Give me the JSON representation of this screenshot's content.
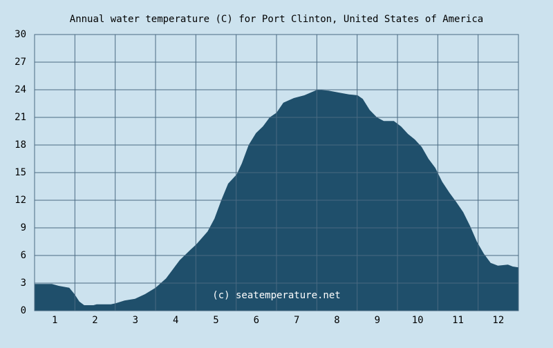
{
  "chart_data": {
    "type": "area",
    "title": "Annual water temperature (C) for Port Clinton, United States of America",
    "annotation": "(c) seatemperature.net",
    "color": "#1f4f6b",
    "background": "#cce2ee",
    "grid": true,
    "xlim": [
      0,
      12
    ],
    "xticks": [
      {
        "value": 0.5,
        "label": "1"
      },
      {
        "value": 1.5,
        "label": "2"
      },
      {
        "value": 2.5,
        "label": "3"
      },
      {
        "value": 3.5,
        "label": "4"
      },
      {
        "value": 4.5,
        "label": "5"
      },
      {
        "value": 5.5,
        "label": "6"
      },
      {
        "value": 6.5,
        "label": "7"
      },
      {
        "value": 7.5,
        "label": "8"
      },
      {
        "value": 8.5,
        "label": "9"
      },
      {
        "value": 9.5,
        "label": "10"
      },
      {
        "value": 10.5,
        "label": "11"
      },
      {
        "value": 11.5,
        "label": "12"
      }
    ],
    "ylim": [
      0,
      30
    ],
    "yticks": [
      0,
      3,
      6,
      9,
      12,
      15,
      18,
      21,
      24,
      27,
      30
    ],
    "x": [
      0,
      0.43,
      0.6,
      0.86,
      0.99,
      1.11,
      1.23,
      1.46,
      1.54,
      1.89,
      2.01,
      2.23,
      2.49,
      2.74,
      3.0,
      3.26,
      3.43,
      3.6,
      3.86,
      4.01,
      4.29,
      4.46,
      4.63,
      4.8,
      5.01,
      5.14,
      5.31,
      5.49,
      5.66,
      5.83,
      6.0,
      6.17,
      6.43,
      6.69,
      7.01,
      7.29,
      7.54,
      7.8,
      8.01,
      8.14,
      8.31,
      8.49,
      8.66,
      8.91,
      9.09,
      9.26,
      9.43,
      9.6,
      9.77,
      9.94,
      10.11,
      10.29,
      10.46,
      10.63,
      10.8,
      10.97,
      11.14,
      11.31,
      11.49,
      11.74,
      11.86,
      12
    ],
    "values": [
      2.9,
      2.9,
      2.7,
      2.5,
      1.8,
      1.0,
      0.6,
      0.6,
      0.7,
      0.7,
      0.8,
      1.1,
      1.3,
      1.8,
      2.5,
      3.5,
      4.5,
      5.5,
      6.6,
      7.2,
      8.6,
      10,
      12,
      13.8,
      14.8,
      16,
      18,
      19.3,
      20,
      21,
      21.5,
      22.6,
      23.1,
      23.4,
      24.0,
      23.9,
      23.7,
      23.5,
      23.4,
      23.0,
      21.8,
      21.0,
      20.6,
      20.6,
      20.0,
      19.2,
      18.6,
      17.8,
      16.5,
      15.5,
      14.0,
      12.8,
      11.8,
      10.7,
      9.2,
      7.5,
      6.2,
      5.2,
      4.9,
      5.0,
      4.8,
      4.7
    ]
  }
}
